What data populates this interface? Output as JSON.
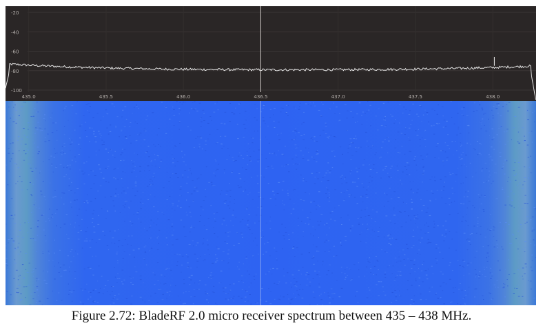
{
  "spectrum": {
    "y_ticks": [
      "-20",
      "-40",
      "-60",
      "-80",
      "-100"
    ],
    "x_ticks": [
      "435.0",
      "435.5",
      "436.0",
      "436.5",
      "437.0",
      "437.5",
      "438.0"
    ],
    "x_range_mhz": [
      434.85,
      438.28
    ],
    "y_range_db": [
      -100,
      -10
    ],
    "noise_floor_db": -78,
    "center_marker_mhz": 436.5,
    "spike_mhz": 438.0,
    "colors": {
      "panel_bg": "#2a2626",
      "trace": "#e6e6e6",
      "tick_text": "#b5b0ad",
      "waterfall_blue": "#2e63f2",
      "waterfall_edge": "#6a9ad0"
    }
  },
  "caption": "Figure 2.72: BladeRF 2.0 micro receiver spectrum between 435 – 438 MHz."
}
